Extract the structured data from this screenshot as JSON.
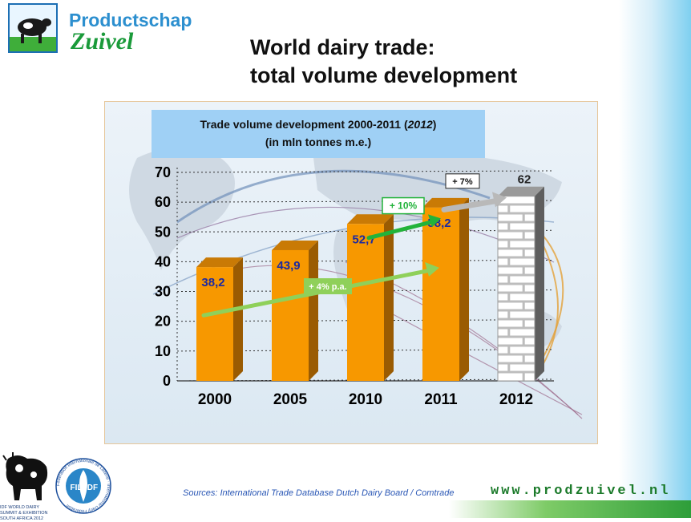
{
  "logo": {
    "line1": "Productschap",
    "line2": "Zuivel"
  },
  "slide_title": {
    "line1": "World dairy trade:",
    "line2": "total volume development"
  },
  "chart_data": {
    "type": "bar",
    "title_line1_pre": "Trade volume development 2000-2011 (",
    "title_line1_italic": "2012",
    "title_line1_post": ")",
    "title_line2": "(in mln tonnes m.e.)",
    "categories": [
      "2000",
      "2005",
      "2010",
      "2011",
      "2012"
    ],
    "values": [
      38.2,
      43.9,
      52.7,
      58.2,
      62
    ],
    "value_labels": [
      "38,2",
      "43,9",
      "52,7",
      "58,2",
      "62"
    ],
    "forecast_index": 4,
    "ylim": [
      0,
      70
    ],
    "yticks": [
      "0",
      "10",
      "20",
      "30",
      "40",
      "50",
      "60",
      "70"
    ],
    "grid": true,
    "annotations": {
      "trend": "+ 4% p.a.",
      "growth_2011": "+ 10%",
      "growth_2012": "+ 7%"
    },
    "colors": {
      "bar": "#f79800",
      "forecast": "#ffffff",
      "value_label": "#1c2aa0",
      "trend": "#8fd05a",
      "growth": "#22b33a",
      "forecast_arrow": "#b9b9b9"
    }
  },
  "footer": {
    "source": "Sources: International Trade Database Dutch Dairy Board / Comtrade",
    "website": "www.prodzuivel.nl",
    "caption": "IDF WORLD DAIRY SUMMIT & EXHIBITION SOUTH AFRICA 2012",
    "idf_ring": "Fédération Internationale de Laiterie · International Dairy Federation",
    "idf_left": "FIL",
    "idf_right": "IDF"
  }
}
